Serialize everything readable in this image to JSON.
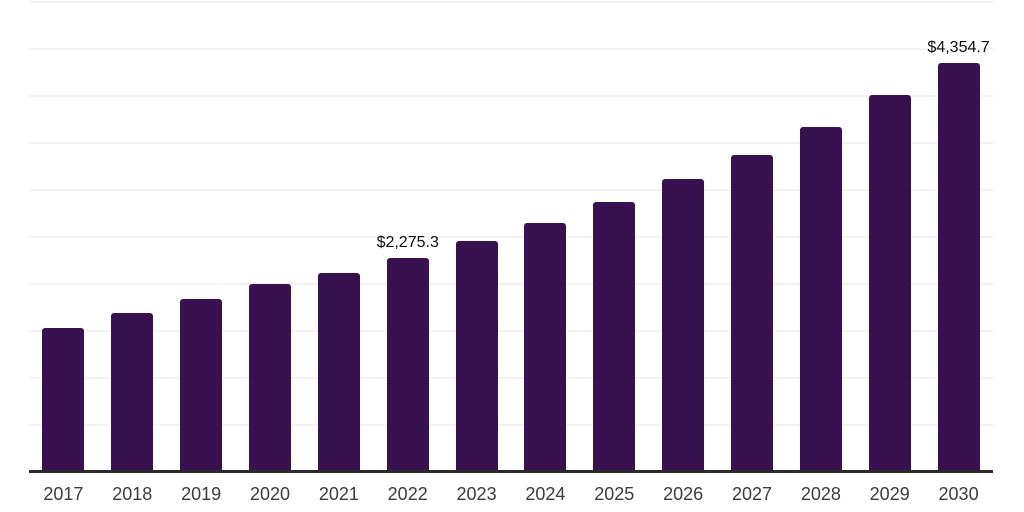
{
  "chart_data": {
    "type": "bar",
    "title": "",
    "xlabel": "",
    "ylabel": "",
    "categories": [
      "2017",
      "2018",
      "2019",
      "2020",
      "2021",
      "2022",
      "2023",
      "2024",
      "2025",
      "2026",
      "2027",
      "2028",
      "2029",
      "2030"
    ],
    "values": [
      1537,
      1689,
      1843,
      1996,
      2122,
      2275.3,
      2462,
      2653,
      2877,
      3114,
      3377,
      3674,
      4008,
      4354.7
    ],
    "data_labels": {
      "2022": "$2,275.3",
      "2030": "$4,354.7"
    },
    "ylim": [
      0,
      5000
    ],
    "gridline_step": 500,
    "grid": "horizontal-only",
    "legend_position": "none",
    "colors": {
      "bar": "#371150",
      "axis_line": "#2a2a2a",
      "gridline": "#f3f3f3",
      "tick_label": "#3c3c3c",
      "data_label": "#0d0d0d",
      "background": "#ffffff"
    }
  }
}
